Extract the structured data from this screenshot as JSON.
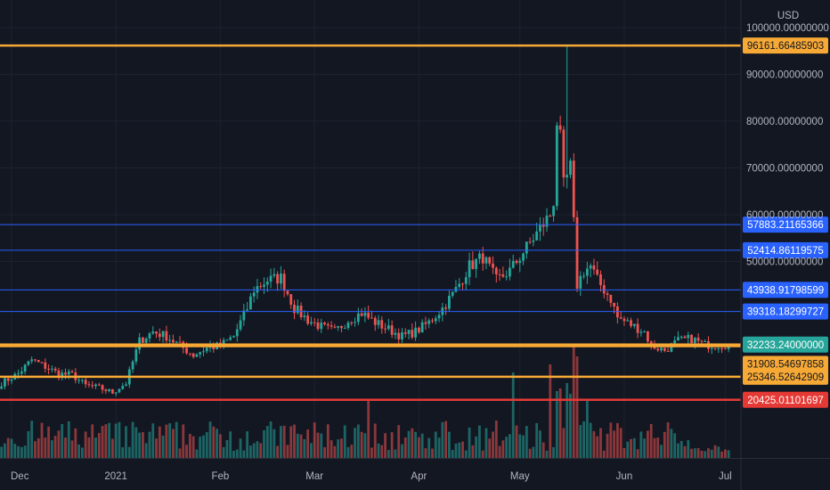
{
  "currency": "USD",
  "colors": {
    "background": "#131722",
    "grid": "#1e2230",
    "up": "#26a69a",
    "down": "#ef5350",
    "orange_line": "#f7a935",
    "blue_line": "#2962ff",
    "red_line": "#e53935",
    "current_price": "#26a69a"
  },
  "chart_data": {
    "type": "candlestick",
    "ylim": [
      8000,
      100000
    ],
    "y_ticks": [
      {
        "value": 100000,
        "label": "100000.00000000"
      },
      {
        "value": 90000,
        "label": "90000.00000000"
      },
      {
        "value": 80000,
        "label": "80000.00000000"
      },
      {
        "value": 70000,
        "label": "70000.00000000"
      },
      {
        "value": 60000,
        "label": "60000.00000000"
      },
      {
        "value": 50000,
        "label": "50000.00000000"
      }
    ],
    "x_ticks": [
      {
        "label": "Dec",
        "day": 0
      },
      {
        "label": "2021",
        "day": 31
      },
      {
        "label": "Feb",
        "day": 62
      },
      {
        "label": "Mar",
        "day": 90
      },
      {
        "label": "Apr",
        "day": 121
      },
      {
        "label": "May",
        "day": 151
      },
      {
        "label": "Jun",
        "day": 182
      },
      {
        "label": "Jul",
        "day": 212
      }
    ],
    "levels": [
      {
        "value": 96161.66485903,
        "label": "96161.66485903",
        "color": "orange"
      },
      {
        "value": 57883.21165366,
        "label": "57883.21165366",
        "color": "blue"
      },
      {
        "value": 52414.86119575,
        "label": "52414.86119575",
        "color": "blue"
      },
      {
        "value": 43938.91798599,
        "label": "43938.91798599",
        "color": "blue"
      },
      {
        "value": 39318.18299727,
        "label": "39318.18299727",
        "color": "blue"
      },
      {
        "value": 32233.24,
        "label": "32233.24000000",
        "color": "current"
      },
      {
        "value": 31908.54697858,
        "label": "31908.54697858",
        "color": "orange"
      },
      {
        "value": 25346.52642909,
        "label": "25346.52642909",
        "color": "orange"
      },
      {
        "value": 20425.01101697,
        "label": "20425.01101697",
        "color": "red"
      }
    ],
    "keypoints": [
      [
        -3,
        24000
      ],
      [
        2,
        26000
      ],
      [
        6,
        29000
      ],
      [
        10,
        27500
      ],
      [
        14,
        26000
      ],
      [
        18,
        25800
      ],
      [
        22,
        23500
      ],
      [
        26,
        23000
      ],
      [
        30,
        22000
      ],
      [
        34,
        24000
      ],
      [
        38,
        33000
      ],
      [
        42,
        35000
      ],
      [
        46,
        34000
      ],
      [
        50,
        32000
      ],
      [
        54,
        30000
      ],
      [
        58,
        31500
      ],
      [
        62,
        32000
      ],
      [
        66,
        34000
      ],
      [
        70,
        40000
      ],
      [
        72,
        44000
      ],
      [
        76,
        46000
      ],
      [
        80,
        46500
      ],
      [
        84,
        40000
      ],
      [
        88,
        37500
      ],
      [
        92,
        36000
      ],
      [
        96,
        35000
      ],
      [
        100,
        37500
      ],
      [
        104,
        39000
      ],
      [
        108,
        37000
      ],
      [
        112,
        35500
      ],
      [
        116,
        34000
      ],
      [
        120,
        35000
      ],
      [
        124,
        37000
      ],
      [
        128,
        40000
      ],
      [
        132,
        44000
      ],
      [
        136,
        49000
      ],
      [
        140,
        51000
      ],
      [
        144,
        46000
      ],
      [
        148,
        48000
      ],
      [
        152,
        52000
      ],
      [
        156,
        56000
      ],
      [
        160,
        60000
      ],
      [
        161,
        63000
      ],
      [
        162,
        80000
      ],
      [
        163,
        76000
      ],
      [
        164,
        66000
      ],
      [
        165,
        68000
      ],
      [
        166,
        70000
      ],
      [
        167,
        58000
      ],
      [
        168,
        45000
      ],
      [
        170,
        48000
      ],
      [
        172,
        49000
      ],
      [
        174,
        46000
      ],
      [
        176,
        44000
      ],
      [
        178,
        42000
      ],
      [
        180,
        38000
      ],
      [
        184,
        36500
      ],
      [
        188,
        35000
      ],
      [
        190,
        32000
      ],
      [
        194,
        31000
      ],
      [
        198,
        33000
      ],
      [
        202,
        33500
      ],
      [
        206,
        32200
      ]
    ],
    "volume_spikes": [
      {
        "day": 106,
        "v": 2.2
      },
      {
        "day": 149,
        "v": 3.2
      },
      {
        "day": 160,
        "v": 3.5
      },
      {
        "day": 162,
        "v": 2.5
      },
      {
        "day": 163,
        "v": 2.6
      },
      {
        "day": 165,
        "v": 2.8
      },
      {
        "day": 166,
        "v": 2.4
      },
      {
        "day": 167,
        "v": 4.2
      },
      {
        "day": 168,
        "v": 3.8
      },
      {
        "day": 171,
        "v": 2.2
      },
      {
        "day": 201,
        "v": 1.9
      }
    ]
  }
}
